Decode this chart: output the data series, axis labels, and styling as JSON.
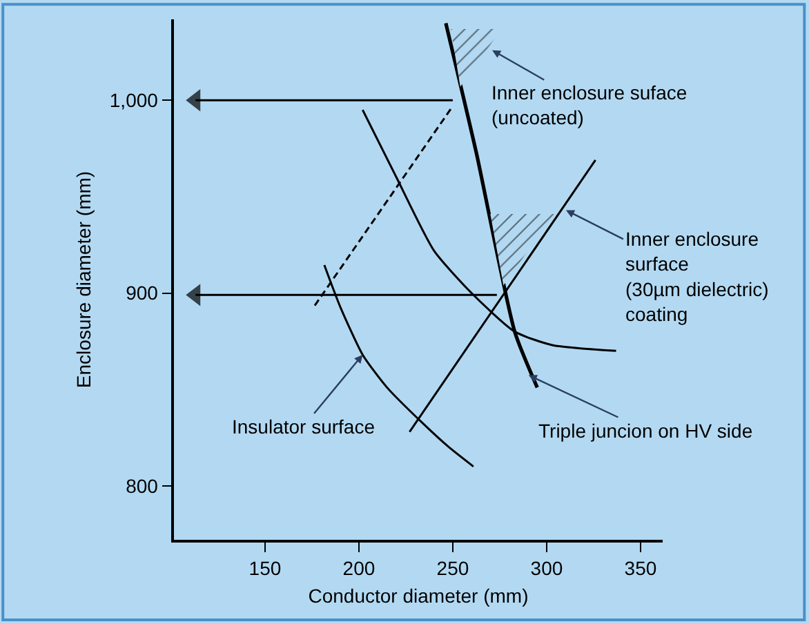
{
  "chart_data": {
    "type": "line",
    "xlabel": "Conductor diameter (mm)",
    "ylabel": "Enclosure diameter (mm)",
    "xlim": [
      101.5,
      361.8
    ],
    "ylim": [
      772,
      1042
    ],
    "xticks": [
      150,
      200,
      250,
      300,
      350
    ],
    "yticks": [
      800,
      900,
      {
        "value": 1000,
        "label": "1,000"
      }
    ],
    "grid": false,
    "marker": "none",
    "series": [
      {
        "color": "#000000",
        "x": [
          181.6,
          190,
          202,
          215,
          234.5,
          248,
          261
        ],
        "values": [
          914.5,
          893,
          868,
          851,
          832,
          820,
          810
        ]
      },
      {
        "color": "#000000",
        "x": [
          202,
          220,
          240,
          260,
          283,
          303,
          337
        ],
        "values": [
          995,
          960,
          922,
          900,
          880,
          873,
          870
        ]
      },
      {
        "color": "#000000",
        "x": [
          246.3,
          262.5,
          283,
          295
        ],
        "values": [
          1040,
          973,
          880,
          851
        ]
      },
      {
        "color": "#000000",
        "x": [
          227,
          326
        ],
        "values": [
          828,
          969
        ]
      },
      {
        "color": "#000000",
        "x": [
          176.5,
          250
        ],
        "values": [
          893.5,
          997
        ],
        "line_style": "dashed"
      },
      {
        "color": "#000000",
        "x": [
          250,
          113
        ],
        "values": [
          1000,
          1000
        ],
        "marker": "triangle"
      },
      {
        "color": "#000000",
        "x": [
          273.5,
          113
        ],
        "values": [
          899,
          899
        ],
        "marker": "triangle"
      },
      {
        "type": "area",
        "color": "#000000",
        "x": [
          249,
          276,
          254
        ],
        "values": [
          1037,
          1037,
          1007
        ]
      },
      {
        "type": "area",
        "color": "#000000",
        "x": [
          270,
          304,
          277
        ],
        "values": [
          941,
          941,
          904
        ]
      }
    ],
    "annotations": [
      {
        "text": "Inner enclosure suface\n(uncoated)",
        "x": 271,
        "y": 1026
      },
      {
        "text": "Inner enclosure\nsurface\n(30µm dielectric)\ncoating",
        "x": 310.3,
        "y": 943
      },
      {
        "text": "Insulator surface",
        "x": 202,
        "y": 868
      },
      {
        "text": "Triple juncion on HV side",
        "x": 290.4,
        "y": 857.4
      }
    ]
  }
}
